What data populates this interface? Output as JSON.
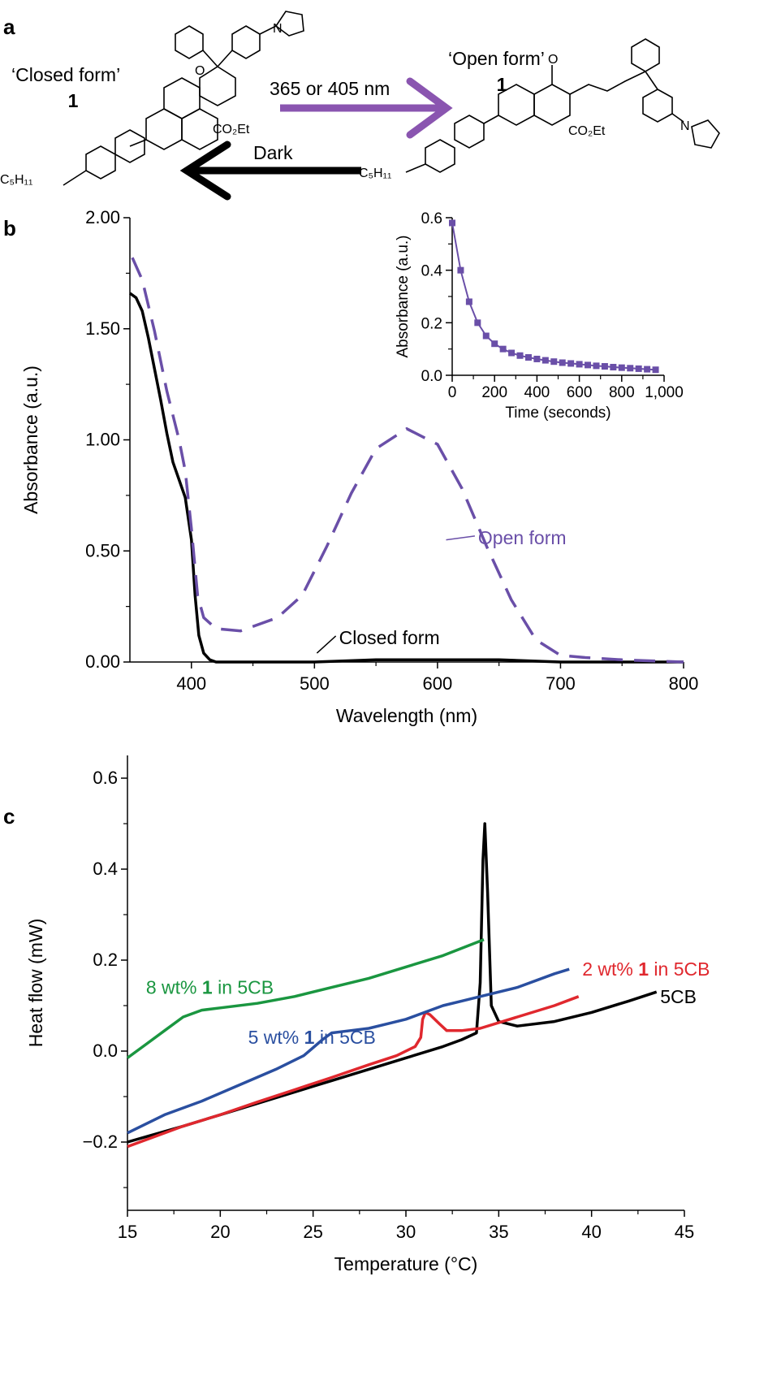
{
  "panels": {
    "a": {
      "letter": "a",
      "closed_label": "‘Closed form’",
      "closed_number": "1",
      "open_label": "‘Open form’",
      "open_number": "1",
      "forward_arrow_label": "365 or 405 nm",
      "reverse_arrow_label": "Dark",
      "closed_substituent_ester": "CO₂Et",
      "open_substituent_ester": "CO₂Et",
      "alkyl_chain": "C₅H₁₁",
      "ring_oxygen": "O",
      "ring_nitrogen": "N",
      "arrow_forward_color": "#8a55b0",
      "arrow_reverse_color": "#000000"
    },
    "b": {
      "letter": "b"
    },
    "c": {
      "letter": "c"
    }
  },
  "chart_data": [
    {
      "panel": "b",
      "type": "line",
      "xlabel": "Wavelength (nm)",
      "ylabel": "Absorbance (a.u.)",
      "xlim": [
        350,
        800
      ],
      "ylim": [
        0,
        2.0
      ],
      "xticks": [
        400,
        500,
        600,
        700,
        800
      ],
      "yticks": [
        0,
        0.5,
        1.0,
        1.5,
        2.0
      ],
      "ytick_labels": [
        "0.00",
        "0.50",
        "1.00",
        "1.50",
        "2.00"
      ],
      "grid": false,
      "series": [
        {
          "name": "Closed form",
          "color": "#000000",
          "style": "solid",
          "points": [
            [
              350,
              1.66
            ],
            [
              355,
              1.64
            ],
            [
              360,
              1.58
            ],
            [
              365,
              1.46
            ],
            [
              370,
              1.32
            ],
            [
              375,
              1.18
            ],
            [
              380,
              1.03
            ],
            [
              385,
              0.9
            ],
            [
              390,
              0.82
            ],
            [
              395,
              0.74
            ],
            [
              400,
              0.55
            ],
            [
              403,
              0.3
            ],
            [
              406,
              0.12
            ],
            [
              410,
              0.04
            ],
            [
              415,
              0.01
            ],
            [
              420,
              0.0
            ],
            [
              450,
              0.0
            ],
            [
              500,
              0.0
            ],
            [
              550,
              0.01
            ],
            [
              600,
              0.01
            ],
            [
              650,
              0.01
            ],
            [
              700,
              0.0
            ],
            [
              750,
              0.0
            ],
            [
              800,
              0.0
            ]
          ]
        },
        {
          "name": "Open form",
          "color": "#6a4fa8",
          "style": "dashed",
          "points": [
            [
              352,
              1.82
            ],
            [
              360,
              1.72
            ],
            [
              370,
              1.49
            ],
            [
              380,
              1.22
            ],
            [
              390,
              1.0
            ],
            [
              395,
              0.86
            ],
            [
              400,
              0.6
            ],
            [
              405,
              0.3
            ],
            [
              410,
              0.2
            ],
            [
              420,
              0.15
            ],
            [
              440,
              0.14
            ],
            [
              470,
              0.2
            ],
            [
              490,
              0.3
            ],
            [
              510,
              0.52
            ],
            [
              530,
              0.76
            ],
            [
              550,
              0.96
            ],
            [
              575,
              1.05
            ],
            [
              600,
              0.98
            ],
            [
              620,
              0.78
            ],
            [
              640,
              0.52
            ],
            [
              660,
              0.28
            ],
            [
              680,
              0.1
            ],
            [
              700,
              0.03
            ],
            [
              720,
              0.02
            ],
            [
              750,
              0.01
            ],
            [
              800,
              0.0
            ]
          ]
        }
      ],
      "annotations": [
        {
          "text": "Open form",
          "x": 633,
          "y": 0.56,
          "leader_to": [
            607,
            0.55
          ]
        },
        {
          "text": "Closed form",
          "x": 520,
          "y": 0.11,
          "leader_to": [
            502,
            0.04
          ]
        }
      ],
      "inset": {
        "type": "scatter",
        "xlabel": "Time (seconds)",
        "ylabel": "Absorbance (a.u.)",
        "xlim": [
          0,
          1000
        ],
        "ylim": [
          0,
          0.6
        ],
        "xticks": [
          0,
          200,
          400,
          600,
          800,
          1000
        ],
        "xtick_labels": [
          "0",
          "200",
          "400",
          "600",
          "800",
          "1,000"
        ],
        "yticks": [
          0,
          0.2,
          0.4,
          0.6
        ],
        "ytick_labels": [
          "0.0",
          "0.2",
          "0.4",
          "0.6"
        ],
        "color": "#6a4fa8",
        "points": [
          [
            0,
            0.58
          ],
          [
            40,
            0.4
          ],
          [
            80,
            0.28
          ],
          [
            120,
            0.2
          ],
          [
            160,
            0.15
          ],
          [
            200,
            0.12
          ],
          [
            240,
            0.1
          ],
          [
            280,
            0.085
          ],
          [
            320,
            0.075
          ],
          [
            360,
            0.068
          ],
          [
            400,
            0.062
          ],
          [
            440,
            0.057
          ],
          [
            480,
            0.052
          ],
          [
            520,
            0.048
          ],
          [
            560,
            0.045
          ],
          [
            600,
            0.042
          ],
          [
            640,
            0.039
          ],
          [
            680,
            0.036
          ],
          [
            720,
            0.034
          ],
          [
            760,
            0.031
          ],
          [
            800,
            0.029
          ],
          [
            840,
            0.027
          ],
          [
            880,
            0.025
          ],
          [
            920,
            0.023
          ],
          [
            960,
            0.021
          ]
        ]
      }
    },
    {
      "panel": "c",
      "type": "line",
      "xlabel": "Temperature (°C)",
      "ylabel": "Heat flow (mW)",
      "xlim": [
        15,
        45
      ],
      "ylim": [
        -0.35,
        0.65
      ],
      "xticks": [
        15,
        20,
        25,
        30,
        35,
        40,
        45
      ],
      "yticks": [
        -0.2,
        0.0,
        0.2,
        0.4,
        0.6
      ],
      "ytick_labels": [
        "−0.2",
        "0.0",
        "0.2",
        "0.4",
        "0.6"
      ],
      "grid": false,
      "series": [
        {
          "name": "5CB",
          "color": "#000000",
          "points": [
            [
              15,
              -0.2
            ],
            [
              18,
              -0.165
            ],
            [
              20,
              -0.14
            ],
            [
              22,
              -0.115
            ],
            [
              24,
              -0.09
            ],
            [
              26,
              -0.065
            ],
            [
              28,
              -0.04
            ],
            [
              30,
              -0.015
            ],
            [
              32,
              0.01
            ],
            [
              33,
              0.025
            ],
            [
              33.8,
              0.04
            ],
            [
              34.0,
              0.15
            ],
            [
              34.15,
              0.42
            ],
            [
              34.25,
              0.5
            ],
            [
              34.4,
              0.35
            ],
            [
              34.6,
              0.1
            ],
            [
              35,
              0.065
            ],
            [
              36,
              0.055
            ],
            [
              38,
              0.065
            ],
            [
              40,
              0.085
            ],
            [
              42,
              0.11
            ],
            [
              43.5,
              0.13
            ]
          ]
        },
        {
          "name": "2 wt% 1 in 5CB",
          "color": "#e0282e",
          "points": [
            [
              15,
              -0.21
            ],
            [
              18,
              -0.165
            ],
            [
              20,
              -0.14
            ],
            [
              22,
              -0.112
            ],
            [
              24,
              -0.085
            ],
            [
              26,
              -0.058
            ],
            [
              28,
              -0.03
            ],
            [
              29.5,
              -0.01
            ],
            [
              30.5,
              0.01
            ],
            [
              30.8,
              0.03
            ],
            [
              30.9,
              0.07
            ],
            [
              31.05,
              0.085
            ],
            [
              31.3,
              0.08
            ],
            [
              31.8,
              0.06
            ],
            [
              32.2,
              0.045
            ],
            [
              33,
              0.045
            ],
            [
              34,
              0.05
            ],
            [
              36,
              0.075
            ],
            [
              38,
              0.1
            ],
            [
              39.3,
              0.12
            ]
          ]
        },
        {
          "name": "5 wt% 1 in 5CB",
          "color": "#2a4fa0",
          "points": [
            [
              15,
              -0.18
            ],
            [
              17,
              -0.14
            ],
            [
              19,
              -0.11
            ],
            [
              21,
              -0.075
            ],
            [
              23,
              -0.04
            ],
            [
              24.5,
              -0.01
            ],
            [
              25.5,
              0.025
            ],
            [
              26,
              0.04
            ],
            [
              27,
              0.045
            ],
            [
              28,
              0.05
            ],
            [
              29,
              0.06
            ],
            [
              30,
              0.07
            ],
            [
              31,
              0.085
            ],
            [
              32,
              0.1
            ],
            [
              33,
              0.11
            ],
            [
              34,
              0.12
            ],
            [
              36,
              0.14
            ],
            [
              38,
              0.17
            ],
            [
              38.8,
              0.18
            ]
          ]
        },
        {
          "name": "8 wt% 1 in 5CB",
          "color": "#1a9640",
          "points": [
            [
              15,
              -0.015
            ],
            [
              16,
              0.015
            ],
            [
              17,
              0.045
            ],
            [
              18,
              0.075
            ],
            [
              19,
              0.09
            ],
            [
              20,
              0.095
            ],
            [
              22,
              0.105
            ],
            [
              24,
              0.12
            ],
            [
              26,
              0.14
            ],
            [
              28,
              0.16
            ],
            [
              30,
              0.185
            ],
            [
              32,
              0.21
            ],
            [
              34.2,
              0.245
            ]
          ]
        }
      ],
      "series_labels": [
        {
          "pre": "8 wt% ",
          "bold": "1",
          "post": " in 5CB",
          "color": "#1a9640",
          "x": 16.0,
          "y": 0.14
        },
        {
          "pre": "5 wt% ",
          "bold": "1",
          "post": " in 5CB",
          "color": "#2a4fa0",
          "x": 21.5,
          "y": 0.03
        },
        {
          "pre": "2 wt% ",
          "bold": "1",
          "post": " in 5CB",
          "color": "#e0282e",
          "x": 39.5,
          "y": 0.18
        },
        {
          "pre": "5CB",
          "bold": "",
          "post": "",
          "color": "#000000",
          "x": 43.7,
          "y": 0.12
        }
      ]
    }
  ]
}
